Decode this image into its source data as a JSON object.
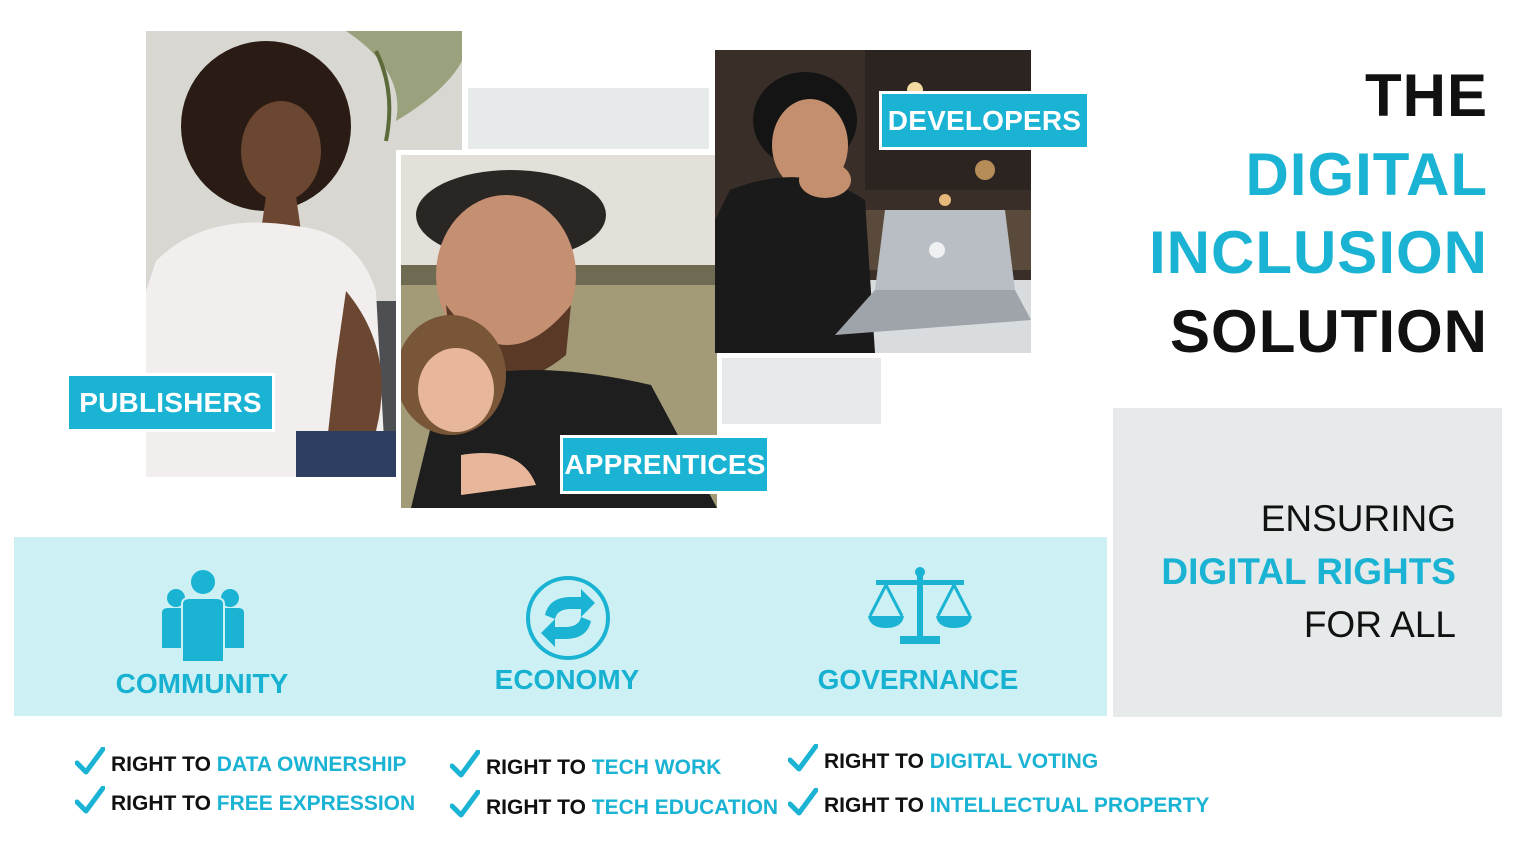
{
  "tags": {
    "publishers": "PUBLISHERS",
    "apprentices": "APPRENTICES",
    "developers": "DEVELOPERS"
  },
  "title": {
    "line1": "THE",
    "line2": "DIGITAL",
    "line3": "INCLUSION",
    "line4": "SOLUTION"
  },
  "panel": {
    "line1": "ENSURING",
    "line2": "DIGITAL RIGHTS",
    "line3": "FOR ALL"
  },
  "pillars": {
    "community": "COMMUNITY",
    "economy": "ECONOMY",
    "governance": "GOVERNANCE"
  },
  "rights": {
    "prefix": "RIGHT TO",
    "community": [
      "DATA OWNERSHIP",
      "FREE EXPRESSION"
    ],
    "economy": [
      "TECH WORK",
      "TECH EDUCATION"
    ],
    "governance": [
      "DIGITAL VOTING",
      "INTELLECTUAL PROPERTY"
    ]
  },
  "colors": {
    "accent": "#1ab3d3",
    "band": "#ccf0f4",
    "panel": "#e6eaeb",
    "text": "#111111"
  }
}
